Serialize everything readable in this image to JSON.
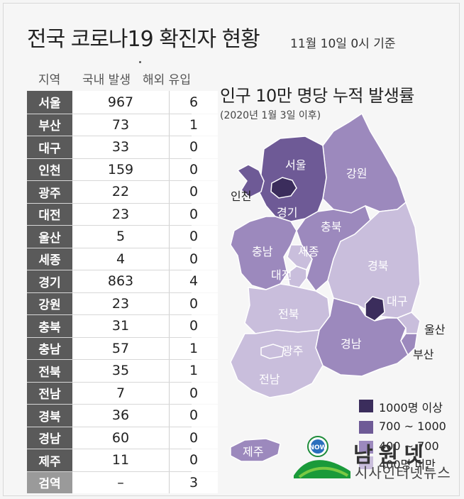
{
  "title": "전국 코로나19 확진자 현황",
  "subtitle": "11월 10일 0시 기준",
  "table": {
    "headers": [
      "지역",
      "국내 발생",
      "해외 유입"
    ],
    "rows": [
      {
        "region": "서울",
        "domestic": "967",
        "overseas": "6"
      },
      {
        "region": "부산",
        "domestic": "73",
        "overseas": "1"
      },
      {
        "region": "대구",
        "domestic": "33",
        "overseas": "0"
      },
      {
        "region": "인천",
        "domestic": "159",
        "overseas": "0"
      },
      {
        "region": "광주",
        "domestic": "22",
        "overseas": "0"
      },
      {
        "region": "대전",
        "domestic": "23",
        "overseas": "0"
      },
      {
        "region": "울산",
        "domestic": "5",
        "overseas": "0"
      },
      {
        "region": "세종",
        "domestic": "4",
        "overseas": "0"
      },
      {
        "region": "경기",
        "domestic": "863",
        "overseas": "4"
      },
      {
        "region": "강원",
        "domestic": "23",
        "overseas": "0"
      },
      {
        "region": "충북",
        "domestic": "31",
        "overseas": "0"
      },
      {
        "region": "충남",
        "domestic": "57",
        "overseas": "1"
      },
      {
        "region": "전북",
        "domestic": "35",
        "overseas": "1"
      },
      {
        "region": "전남",
        "domestic": "7",
        "overseas": "0"
      },
      {
        "region": "경북",
        "domestic": "36",
        "overseas": "0"
      },
      {
        "region": "경남",
        "domestic": "60",
        "overseas": "0"
      },
      {
        "region": "제주",
        "domestic": "11",
        "overseas": "0"
      },
      {
        "region": "검역",
        "domestic": "–",
        "overseas": "3"
      }
    ]
  },
  "chart_data": {
    "type": "table",
    "title": "전국 코로나19 확진자 현황",
    "subtitle": "11월 10일 0시 기준",
    "columns": [
      "지역",
      "국내 발생",
      "해외 유입"
    ],
    "categories": [
      "서울",
      "부산",
      "대구",
      "인천",
      "광주",
      "대전",
      "울산",
      "세종",
      "경기",
      "강원",
      "충북",
      "충남",
      "전북",
      "전남",
      "경북",
      "경남",
      "제주",
      "검역"
    ],
    "series": [
      {
        "name": "국내 발생",
        "values": [
          967,
          73,
          33,
          159,
          22,
          23,
          5,
          4,
          863,
          23,
          31,
          57,
          35,
          7,
          36,
          60,
          11,
          null
        ]
      },
      {
        "name": "해외 유입",
        "values": [
          6,
          1,
          0,
          0,
          0,
          0,
          0,
          0,
          4,
          0,
          0,
          1,
          1,
          0,
          0,
          0,
          0,
          3
        ]
      }
    ]
  },
  "map": {
    "title": "인구 10만 명당 누적 발생률",
    "subtitle": "(2020년 1월 3일 이후)",
    "labels": {
      "seoul": "서울",
      "incheon": "인천",
      "gyeonggi": "경기",
      "gangwon": "강원",
      "chungbuk": "충북",
      "chungnam": "충남",
      "sejong": "세종",
      "daejeon": "대전",
      "gyeongbuk": "경북",
      "daegu": "대구",
      "jeonbuk": "전북",
      "gwangju": "광주",
      "jeonnam": "전남",
      "gyeongnam": "경남",
      "ulsan": "울산",
      "busan": "부산",
      "jeju": "제주"
    },
    "colors": {
      "tier1": "#3b2d5c",
      "tier2": "#6e5a96",
      "tier3": "#9c89bd",
      "tier4": "#c9bedc"
    }
  },
  "legend": [
    {
      "label": "1000명 이상",
      "color": "#3b2d5c"
    },
    {
      "label": "700 ~ 1000",
      "color": "#6e5a96"
    },
    {
      "label": "400 ~ 700",
      "color": "#9c89bd"
    },
    {
      "label": "400명 미만",
      "color": "#c9bedc"
    }
  ],
  "logo": {
    "name": "남원넷",
    "tagline": "시사인터넷뉴스",
    "badge": "NOW"
  }
}
